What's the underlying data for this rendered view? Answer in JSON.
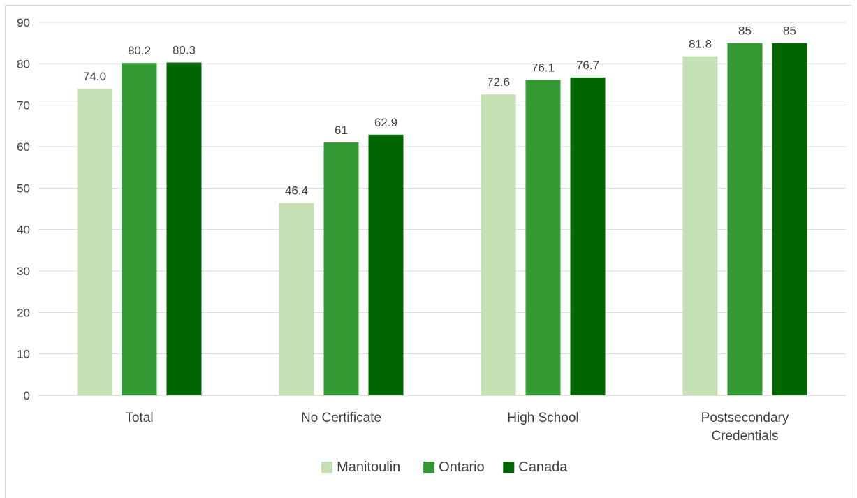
{
  "chart_data": {
    "type": "bar",
    "title": "",
    "xlabel": "",
    "ylabel": "",
    "categories": [
      "Total",
      "No Certificate",
      "High School",
      "Postsecondary Credentials"
    ],
    "category_lines": [
      [
        "Total"
      ],
      [
        "No Certificate"
      ],
      [
        "High School"
      ],
      [
        "Postsecondary",
        "Credentials"
      ]
    ],
    "series": [
      {
        "name": "Manitoulin",
        "color": "#c5e0b4",
        "values": [
          74.0,
          46.4,
          72.6,
          81.8
        ],
        "labels": [
          "74.0",
          "46.4",
          "72.6",
          "81.8"
        ]
      },
      {
        "name": "Ontario",
        "color": "#339933",
        "values": [
          80.2,
          61,
          76.1,
          85
        ],
        "labels": [
          "80.2",
          "61",
          "76.1",
          "85"
        ]
      },
      {
        "name": "Canada",
        "color": "#006600",
        "values": [
          80.3,
          62.9,
          76.7,
          85
        ],
        "labels": [
          "80.3",
          "62.9",
          "76.7",
          "85"
        ]
      }
    ],
    "ylim": [
      0,
      90
    ],
    "yticks": [
      0,
      10,
      20,
      30,
      40,
      50,
      60,
      70,
      80,
      90
    ],
    "grid": true,
    "legend_position": "bottom"
  }
}
